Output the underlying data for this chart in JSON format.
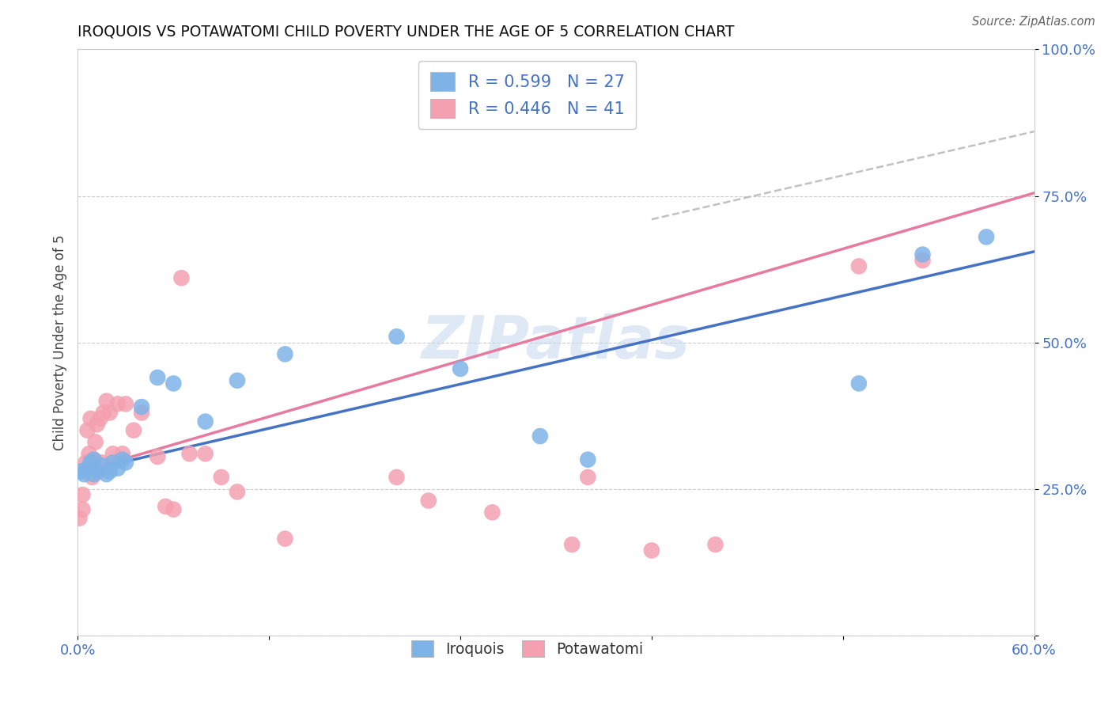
{
  "title": "IROQUOIS VS POTAWATOMI CHILD POVERTY UNDER THE AGE OF 5 CORRELATION CHART",
  "source": "Source: ZipAtlas.com",
  "ylabel_label": "Child Poverty Under the Age of 5",
  "xlim": [
    0.0,
    0.6
  ],
  "ylim": [
    0.0,
    1.0
  ],
  "xticks": [
    0.0,
    0.12,
    0.24,
    0.36,
    0.48,
    0.6
  ],
  "xticklabels": [
    "0.0%",
    "",
    "",
    "",
    "",
    "60.0%"
  ],
  "yticks": [
    0.0,
    0.25,
    0.5,
    0.75,
    1.0
  ],
  "yticklabels": [
    "",
    "25.0%",
    "50.0%",
    "75.0%",
    "100.0%"
  ],
  "iroquois_color": "#7EB3E8",
  "potawatomi_color": "#F4A0B0",
  "iroquois_line_color": "#4472C4",
  "potawatomi_line_color": "#E87A9F",
  "legend_r_iroquois": "R = 0.599",
  "legend_n_iroquois": "N = 27",
  "legend_r_potawatomi": "R = 0.446",
  "legend_n_potawatomi": "N = 41",
  "watermark": "ZIPatlas",
  "iroquois_x": [
    0.002,
    0.004,
    0.006,
    0.008,
    0.01,
    0.01,
    0.012,
    0.015,
    0.018,
    0.02,
    0.022,
    0.025,
    0.028,
    0.03,
    0.04,
    0.05,
    0.06,
    0.08,
    0.1,
    0.13,
    0.2,
    0.24,
    0.29,
    0.32,
    0.49,
    0.53,
    0.57
  ],
  "iroquois_y": [
    0.28,
    0.275,
    0.285,
    0.295,
    0.275,
    0.3,
    0.28,
    0.29,
    0.275,
    0.28,
    0.295,
    0.285,
    0.3,
    0.295,
    0.39,
    0.44,
    0.43,
    0.365,
    0.435,
    0.48,
    0.51,
    0.455,
    0.34,
    0.3,
    0.43,
    0.65,
    0.68
  ],
  "potawatomi_x": [
    0.001,
    0.003,
    0.003,
    0.005,
    0.006,
    0.007,
    0.008,
    0.009,
    0.01,
    0.011,
    0.012,
    0.013,
    0.014,
    0.015,
    0.016,
    0.018,
    0.02,
    0.022,
    0.025,
    0.028,
    0.03,
    0.035,
    0.04,
    0.05,
    0.055,
    0.06,
    0.065,
    0.07,
    0.08,
    0.09,
    0.1,
    0.13,
    0.2,
    0.22,
    0.26,
    0.31,
    0.32,
    0.36,
    0.4,
    0.49,
    0.53
  ],
  "potawatomi_y": [
    0.2,
    0.215,
    0.24,
    0.295,
    0.35,
    0.31,
    0.37,
    0.27,
    0.3,
    0.33,
    0.36,
    0.28,
    0.37,
    0.295,
    0.38,
    0.4,
    0.38,
    0.31,
    0.395,
    0.31,
    0.395,
    0.35,
    0.38,
    0.305,
    0.22,
    0.215,
    0.61,
    0.31,
    0.31,
    0.27,
    0.245,
    0.165,
    0.27,
    0.23,
    0.21,
    0.155,
    0.27,
    0.145,
    0.155,
    0.63,
    0.64
  ],
  "iq_line_x0": 0.0,
  "iq_line_x1": 0.6,
  "iq_line_y0": 0.278,
  "iq_line_y1": 0.655,
  "pt_line_x0": 0.0,
  "pt_line_x1": 0.6,
  "pt_line_y0": 0.278,
  "pt_line_y1": 0.755,
  "dash_line_x0": 0.36,
  "dash_line_x1": 0.6,
  "dash_line_y0": 0.71,
  "dash_line_y1": 0.86
}
